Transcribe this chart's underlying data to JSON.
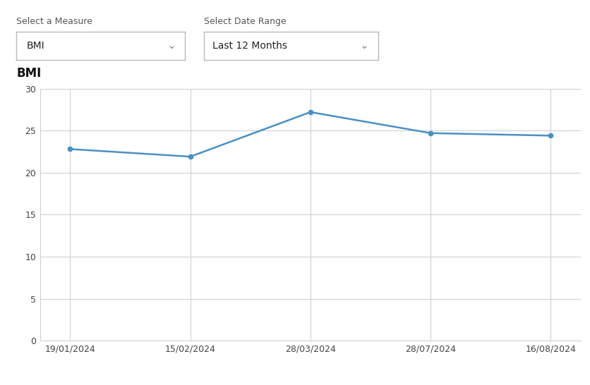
{
  "title": "BMI",
  "x_labels": [
    "19/01/2024",
    "15/02/2024",
    "28/03/2024",
    "28/07/2024",
    "16/08/2024"
  ],
  "y_values": [
    22.8,
    21.9,
    27.2,
    24.7,
    24.4
  ],
  "line_color": "#4a90c4",
  "marker_color": "#4a90c4",
  "ylim": [
    0,
    30
  ],
  "yticks": [
    0,
    5,
    10,
    15,
    20,
    25,
    30
  ],
  "background_color": "#ffffff",
  "plot_bg_color": "#ffffff",
  "grid_color": "#cccccc",
  "title_fontsize": 12,
  "tick_fontsize": 9,
  "title_fontweight": "bold",
  "ui_label1": "Select a Measure",
  "ui_value1": "BMI",
  "ui_label2": "Select Date Range",
  "ui_value2": "Last 12 Months",
  "ui_label_color": "#555555",
  "ui_value_color": "#222222",
  "border_color": "#bbbbbb"
}
